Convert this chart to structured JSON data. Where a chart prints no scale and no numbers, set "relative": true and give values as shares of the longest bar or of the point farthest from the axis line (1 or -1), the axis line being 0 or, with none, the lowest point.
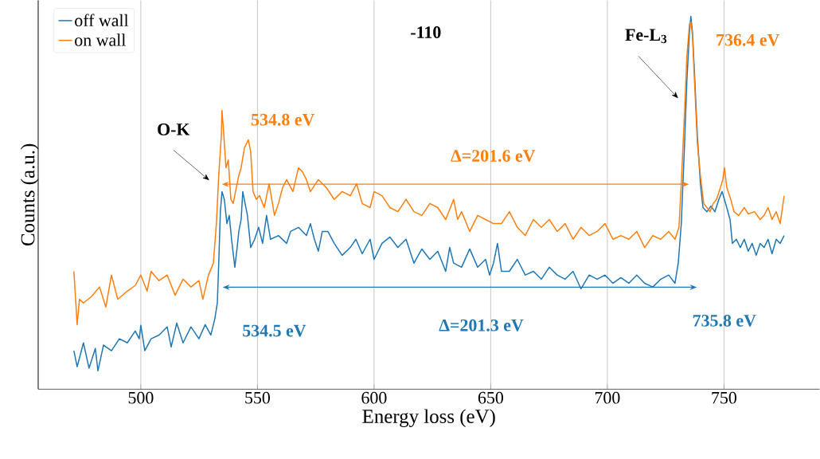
{
  "chart_data": {
    "type": "line",
    "relative": true,
    "xlabel": "Energy loss (eV)",
    "ylabel": "Counts (a.u.)",
    "xlim": [
      456,
      791
    ],
    "xticks": [
      500,
      550,
      600,
      650,
      700,
      750
    ],
    "grid": "x",
    "legend": "top left",
    "tick_labels": "x",
    "annotations": [
      "-110",
      "O-K",
      "Fe-L$_{3}$",
      "534.8 eV",
      "736.4 eV",
      "Δ=201.6 eV",
      "534.5 eV",
      "735.8 eV",
      "Δ=201.3 eV"
    ],
    "series": [
      {
        "name": "off wall",
        "color": "#1f77b4",
        "x": [
          471.3,
          472.7,
          475.4,
          477.8,
          480.5,
          481.6,
          484.0,
          487.4,
          490.8,
          494.2,
          497.6,
          499.3,
          500,
          501.7,
          504.4,
          507.8,
          511.3,
          513.0,
          515.4,
          518.1,
          521.5,
          524.9,
          527.6,
          530.0,
          531.7,
          532.8,
          533.4,
          534.1,
          534.8,
          535.8,
          536.9,
          537.9,
          538.9,
          540.3,
          541.3,
          542.0,
          543.0,
          543.7,
          544.7,
          545.7,
          547.1,
          548.8,
          550.5,
          552.2,
          553.9,
          555.6,
          559.0,
          562.5,
          564.2,
          567.6,
          571.0,
          572.7,
          574.4,
          576.1,
          577.8,
          580.2,
          582.9,
          586.3,
          589.8,
          592.2,
          594.9,
          598.3,
          600.0,
          603.4,
          606.8,
          610.2,
          613.7,
          617.1,
          620.5,
          623.9,
          627.3,
          630.7,
          632.4,
          634.1,
          637.5,
          641.0,
          644.4,
          647.8,
          649.5,
          651.2,
          652.9,
          654.6,
          658.0,
          661.4,
          664.8,
          668.3,
          671.7,
          675.1,
          678.5,
          681.9,
          685.3,
          688.7,
          692.2,
          695.6,
          699.0,
          702.4,
          705.8,
          709.2,
          712.6,
          716.0,
          719.5,
          722.9,
          726.3,
          729.0,
          730.4,
          731.7,
          733.1,
          734.1,
          735.2,
          735.8,
          736.5,
          737.5,
          738.6,
          739.9,
          741.0,
          742.7,
          744.4,
          746.1,
          747.8,
          749.2,
          750.2,
          751.2,
          752.6,
          753.6,
          755.3,
          757.0,
          758.7,
          760.4,
          762.1,
          763.8,
          765.5,
          767.2,
          768.9,
          770.6,
          772.4,
          774.1,
          775.8
        ],
        "values": [
          0.103,
          0.06,
          0.124,
          0.056,
          0.109,
          0.049,
          0.118,
          0.103,
          0.135,
          0.124,
          0.156,
          0.135,
          0.171,
          0.103,
          0.135,
          0.145,
          0.167,
          0.113,
          0.177,
          0.124,
          0.167,
          0.135,
          0.173,
          0.145,
          0.188,
          0.231,
          0.338,
          0.476,
          0.53,
          0.509,
          0.444,
          0.466,
          0.402,
          0.327,
          0.38,
          0.423,
          0.455,
          0.53,
          0.498,
          0.466,
          0.38,
          0.402,
          0.434,
          0.391,
          0.466,
          0.402,
          0.412,
          0.391,
          0.423,
          0.434,
          0.412,
          0.444,
          0.402,
          0.37,
          0.423,
          0.423,
          0.391,
          0.359,
          0.38,
          0.402,
          0.363,
          0.402,
          0.348,
          0.391,
          0.408,
          0.38,
          0.402,
          0.338,
          0.376,
          0.348,
          0.37,
          0.316,
          0.38,
          0.338,
          0.327,
          0.376,
          0.327,
          0.348,
          0.306,
          0.338,
          0.391,
          0.316,
          0.316,
          0.348,
          0.306,
          0.316,
          0.295,
          0.327,
          0.306,
          0.295,
          0.316,
          0.269,
          0.306,
          0.295,
          0.306,
          0.284,
          0.299,
          0.284,
          0.306,
          0.284,
          0.274,
          0.295,
          0.306,
          0.284,
          0.338,
          0.444,
          0.658,
          0.829,
          0.957,
          1.0,
          0.957,
          0.829,
          0.679,
          0.551,
          0.487,
          0.476,
          0.491,
          0.476,
          0.509,
          0.53,
          0.509,
          0.487,
          0.455,
          0.391,
          0.402,
          0.38,
          0.402,
          0.37,
          0.391,
          0.359,
          0.391,
          0.38,
          0.402,
          0.363,
          0.402,
          0.391,
          0.412
        ]
      },
      {
        "name": "on wall",
        "color": "#ff7f0e",
        "x": [
          471.3,
          472.7,
          473.7,
          475.4,
          478.8,
          482.3,
          485.0,
          487.4,
          490.1,
          494.2,
          497.6,
          500,
          502.7,
          504.4,
          507.8,
          511.3,
          514.7,
          518.1,
          521.5,
          524.9,
          526.6,
          529.0,
          531.1,
          532.4,
          533.4,
          534.5,
          534.8,
          535.5,
          536.5,
          537.5,
          538.6,
          539.6,
          540.6,
          542.0,
          543.0,
          544.4,
          546.1,
          547.1,
          548.1,
          549.5,
          550.9,
          552.9,
          555.0,
          557.3,
          559.0,
          560.8,
          562.5,
          565.2,
          567.6,
          569.3,
          571.0,
          572.7,
          576.1,
          579.5,
          582.9,
          586.3,
          589.8,
          592.5,
          594.9,
          598.3,
          600.0,
          603.4,
          606.8,
          610.2,
          613.7,
          617.1,
          620.5,
          623.9,
          627.3,
          630.7,
          634.1,
          635.8,
          637.5,
          641.0,
          644.4,
          647.8,
          651.2,
          654.6,
          658.0,
          661.4,
          664.8,
          668.3,
          671.7,
          675.1,
          678.5,
          681.9,
          685.3,
          688.7,
          692.2,
          695.6,
          699.0,
          702.4,
          705.8,
          709.2,
          712.6,
          716.0,
          719.5,
          722.9,
          726.3,
          729.0,
          730.7,
          731.7,
          733.1,
          734.1,
          735.2,
          735.8,
          736.5,
          737.5,
          738.6,
          739.9,
          741.3,
          742.7,
          744.0,
          745.4,
          746.8,
          748.5,
          749.5,
          750.2,
          751.2,
          752.9,
          754.3,
          756.3,
          758.7,
          760.4,
          763.1,
          765.5,
          767.2,
          768.9,
          770.6,
          772.4,
          774.1,
          775.8
        ],
        "values": [
          0.316,
          0.173,
          0.241,
          0.231,
          0.248,
          0.274,
          0.22,
          0.306,
          0.241,
          0.263,
          0.278,
          0.306,
          0.263,
          0.316,
          0.291,
          0.306,
          0.252,
          0.295,
          0.274,
          0.291,
          0.241,
          0.306,
          0.338,
          0.444,
          0.573,
          0.679,
          0.748,
          0.69,
          0.594,
          0.615,
          0.509,
          0.498,
          0.53,
          0.573,
          0.594,
          0.647,
          0.669,
          0.637,
          0.53,
          0.509,
          0.519,
          0.487,
          0.551,
          0.466,
          0.498,
          0.541,
          0.562,
          0.53,
          0.594,
          0.583,
          0.562,
          0.53,
          0.562,
          0.541,
          0.509,
          0.53,
          0.519,
          0.551,
          0.498,
          0.487,
          0.53,
          0.519,
          0.487,
          0.476,
          0.509,
          0.476,
          0.466,
          0.498,
          0.487,
          0.455,
          0.509,
          0.455,
          0.476,
          0.423,
          0.466,
          0.455,
          0.444,
          0.444,
          0.476,
          0.434,
          0.412,
          0.455,
          0.434,
          0.455,
          0.423,
          0.444,
          0.402,
          0.434,
          0.412,
          0.423,
          0.444,
          0.402,
          0.412,
          0.402,
          0.423,
          0.38,
          0.412,
          0.402,
          0.423,
          0.402,
          0.434,
          0.551,
          0.744,
          0.893,
          0.979,
          0.985,
          0.947,
          0.808,
          0.658,
          0.573,
          0.498,
          0.487,
          0.476,
          0.498,
          0.509,
          0.541,
          0.562,
          0.594,
          0.541,
          0.509,
          0.476,
          0.466,
          0.487,
          0.47,
          0.476,
          0.455,
          0.466,
          0.487,
          0.455,
          0.476,
          0.444,
          0.519
        ]
      }
    ]
  }
}
